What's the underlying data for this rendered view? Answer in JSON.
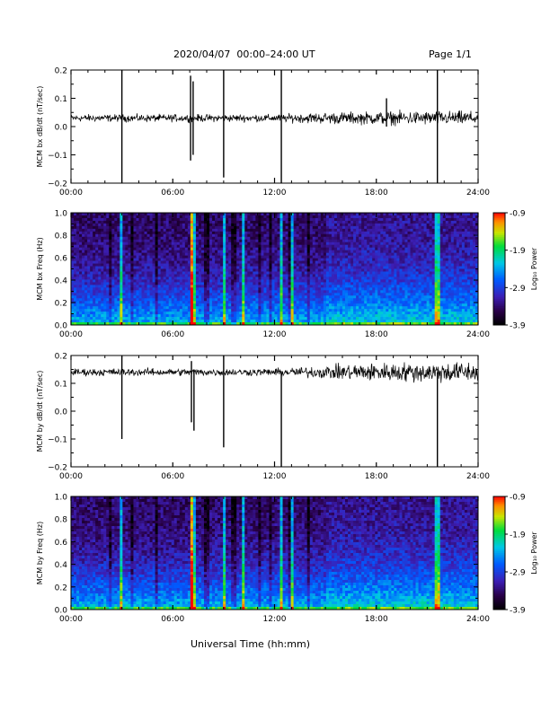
{
  "header": {
    "title": "2020/04/07  00:00–24:00 UT",
    "page": "Page 1/1"
  },
  "xaxis_label": "Universal Time (hh:mm)",
  "chart_data": [
    {
      "type": "line",
      "ylabel": "MCM bx dB/dt (nT/sec)",
      "xlim": [
        0,
        24
      ],
      "ylim": [
        -0.2,
        0.2
      ],
      "x_ticks": [
        "00:00",
        "06:00",
        "12:00",
        "18:00",
        "24:00"
      ],
      "y_ticks": [
        "0.2",
        "0.1",
        "0.0",
        "−0.1",
        "−0.2"
      ],
      "baseline": 0.03,
      "noise": [
        [
          0,
          0.009
        ],
        [
          8,
          0.009
        ],
        [
          12,
          0.009
        ],
        [
          15,
          0.014
        ],
        [
          20,
          0.017
        ],
        [
          24,
          0.017
        ]
      ],
      "spikes": [
        {
          "x": 3.0,
          "ymin": -0.2,
          "ymax": 0.2
        },
        {
          "x": 7.05,
          "ymin": -0.12,
          "ymax": 0.18
        },
        {
          "x": 7.2,
          "ymin": -0.1,
          "ymax": 0.16
        },
        {
          "x": 9.0,
          "ymin": -0.18,
          "ymax": 0.2
        },
        {
          "x": 12.4,
          "ymin": -0.2,
          "ymax": 0.2
        },
        {
          "x": 18.6,
          "ymin": 0.0,
          "ymax": 0.1
        },
        {
          "x": 21.6,
          "ymin": -0.2,
          "ymax": 0.2
        }
      ]
    },
    {
      "type": "heatmap",
      "ylabel": "MCM bx Freq (Hz)",
      "xlim": [
        0,
        24
      ],
      "ylim": [
        0,
        1
      ],
      "x_ticks": [
        "00:00",
        "06:00",
        "12:00",
        "18:00",
        "24:00"
      ],
      "y_ticks": [
        "1.0",
        "0.8",
        "0.6",
        "0.4",
        "0.2",
        "0.0"
      ],
      "colorbar": {
        "label": "Log₁₀ Power",
        "range": [
          -3.9,
          -0.9
        ],
        "ticks": [
          "-0.9",
          "-1.9",
          "-2.9",
          "-3.9"
        ]
      },
      "bright_bands": [
        3.0,
        7.1,
        7.2,
        9.0,
        10.2,
        12.4,
        13.1,
        21.6
      ],
      "dark_bands": [
        2.3,
        3.6,
        5.1,
        8.0,
        9.6,
        11.1,
        11.7,
        12.9,
        14.0
      ]
    },
    {
      "type": "line",
      "ylabel": "MCM by dB/dt (nT/sec)",
      "xlim": [
        0,
        24
      ],
      "ylim": [
        -0.2,
        0.2
      ],
      "x_ticks": [
        "00:00",
        "06:00",
        "12:00",
        "18:00",
        "24:00"
      ],
      "y_ticks": [
        "0.2",
        "0.1",
        "0.0",
        "−0.1",
        "−0.2"
      ],
      "baseline": 0.14,
      "noise": [
        [
          0,
          0.009
        ],
        [
          12,
          0.009
        ],
        [
          15,
          0.016
        ],
        [
          17,
          0.022
        ],
        [
          24,
          0.026
        ]
      ],
      "spikes": [
        {
          "x": 3.0,
          "ymin": -0.1,
          "ymax": 0.2
        },
        {
          "x": 7.1,
          "ymin": -0.04,
          "ymax": 0.18
        },
        {
          "x": 7.25,
          "ymin": -0.07,
          "ymax": 0.15
        },
        {
          "x": 9.0,
          "ymin": -0.13,
          "ymax": 0.2
        },
        {
          "x": 12.4,
          "ymin": -0.2,
          "ymax": 0.14
        },
        {
          "x": 21.6,
          "ymin": -0.2,
          "ymax": 0.14
        }
      ]
    },
    {
      "type": "heatmap",
      "ylabel": "MCM by Freq (Hz)",
      "xlim": [
        0,
        24
      ],
      "ylim": [
        0,
        1
      ],
      "x_ticks": [
        "00:00",
        "06:00",
        "12:00",
        "18:00",
        "24:00"
      ],
      "y_ticks": [
        "1.0",
        "0.8",
        "0.6",
        "0.4",
        "0.2",
        "0.0"
      ],
      "colorbar": {
        "label": "Log₁₀ Power",
        "range": [
          -3.9,
          -0.9
        ],
        "ticks": [
          "-0.9",
          "-1.9",
          "-2.9",
          "-3.9"
        ]
      },
      "bright_bands": [
        3.0,
        7.1,
        7.2,
        9.0,
        10.2,
        12.4,
        13.1,
        21.6
      ],
      "dark_bands": [
        2.3,
        3.6,
        5.1,
        8.0,
        9.6,
        11.1,
        11.7,
        12.9,
        14.0
      ]
    }
  ]
}
